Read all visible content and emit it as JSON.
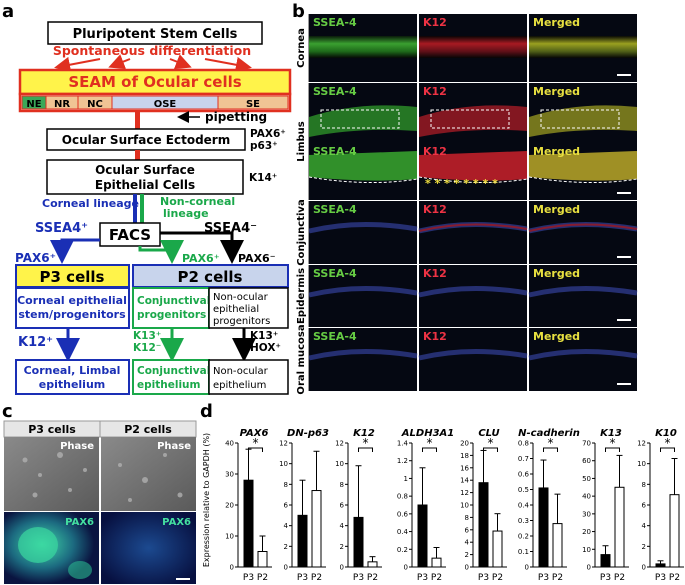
{
  "panel_a": {
    "label": "a",
    "top_box": "Pluripotent Stem Cells",
    "spont_diff": "Spontaneous differentiation",
    "seam_box": "SEAM of Ocular cells",
    "seam_zones": [
      "NE",
      "NR",
      "NC",
      "OSE",
      "SE"
    ],
    "pipetting": "pipetting",
    "ose_box": "Ocular Surface Ectoderm",
    "ose_markers": [
      "PAX6⁺",
      "p63⁺"
    ],
    "osep_box_line1": "Ocular Surface",
    "osep_box_line2": "Epithelial Cells",
    "osep_marker": "K14⁺",
    "corneal_lineage": "Corneal lineage",
    "noncorneal_line1": "Non-corneal",
    "noncorneal_line2": "lineage",
    "ssea4_pos": "SSEA4⁺",
    "ssea4_neg": "SSEA4⁻",
    "facs": "FACS",
    "pax6_pos_blue": "PAX6⁺",
    "pax6_pos_green": "PAX6⁺",
    "pax6_neg": "PAX6⁻",
    "p3_title": "P3 cells",
    "p2_title": "P2 cells",
    "p3_sub_line1": "Corneal epithelial",
    "p3_sub_line2": "stem/progenitors",
    "conj_prog_line1": "Conjunctival",
    "conj_prog_line2": "progenitors",
    "nonocular_prog_line1": "Non-ocular",
    "nonocular_prog_line2": "epithelial",
    "nonocular_prog_line3": "progenitors",
    "k12_pos": "K12⁺",
    "k13_k12_line1": "K13⁺",
    "k13_k12_line2": "K12⁻",
    "k13_hox_line1": "K13⁺",
    "k13_hox_line2": "HOX⁺",
    "corneal_limbal_line1": "Corneal, Limbal",
    "corneal_limbal_line2": "epithelium",
    "conj_epi_line1": "Conjunctival",
    "conj_epi_line2": "epithelium",
    "nonocular_epi_line1": "Non-ocular",
    "nonocular_epi_line2": "epithelium",
    "colors": {
      "red": "#e03020",
      "blue": "#1a2fb5",
      "green": "#1aa84a",
      "yellow": "#fff34a",
      "ose_fill": "#c8d4ec",
      "zone_fill": "#f0c494",
      "ne_fill": "#3aa858"
    }
  },
  "panel_b": {
    "label": "b",
    "col_labels": [
      "SSEA-4",
      "K12",
      "Merged"
    ],
    "col_label_colors": [
      "#66cc44",
      "#ee3344",
      "#e8e040"
    ],
    "row_labels": [
      "Cornea",
      "Limbus",
      "Conjunctiva",
      "Epidermis",
      "Oral mucosa"
    ],
    "asterisks": "* * * * * * * *"
  },
  "panel_c": {
    "label": "c",
    "col_labels": [
      "P3 cells",
      "P2 cells"
    ],
    "phase_label": "Phase",
    "pax6_label": "PAX6"
  },
  "panel_d": {
    "label": "d",
    "ylabel": "Expression relative to GAPDH (%)",
    "xcats": [
      "P3",
      "P2"
    ],
    "sig_mark": "*"
  },
  "chart_data": [
    {
      "type": "bar",
      "title": "PAX6",
      "categories": [
        "P3",
        "P2"
      ],
      "values": [
        28,
        5
      ],
      "errors": [
        10,
        5
      ],
      "ylim": [
        0,
        40
      ],
      "yticks": [
        0,
        10,
        20,
        30,
        40
      ],
      "significant": true
    },
    {
      "type": "bar",
      "title": "DN-p63",
      "categories": [
        "P3",
        "P2"
      ],
      "values": [
        5,
        7.4
      ],
      "errors": [
        3.4,
        3.8
      ],
      "ylim": [
        0,
        12
      ],
      "yticks": [
        0,
        2,
        4,
        6,
        8,
        10,
        12
      ],
      "significant": false
    },
    {
      "type": "bar",
      "title": "K12",
      "categories": [
        "P3",
        "P2"
      ],
      "values": [
        4.8,
        0.5
      ],
      "errors": [
        5,
        0.5
      ],
      "ylim": [
        0,
        12
      ],
      "yticks": [
        0,
        2,
        4,
        6,
        8,
        10,
        12
      ],
      "significant": true
    },
    {
      "type": "bar",
      "title": "ALDH3A1",
      "categories": [
        "P3",
        "P2"
      ],
      "values": [
        0.7,
        0.1
      ],
      "errors": [
        0.42,
        0.12
      ],
      "ylim": [
        0,
        1.4
      ],
      "yticks": [
        0,
        0.2,
        0.4,
        0.6,
        0.8,
        1,
        1.2,
        1.4
      ],
      "significant": true
    },
    {
      "type": "bar",
      "title": "CLU",
      "categories": [
        "P3",
        "P2"
      ],
      "values": [
        13.6,
        5.8
      ],
      "errors": [
        5.2,
        2.8
      ],
      "ylim": [
        0,
        20
      ],
      "yticks": [
        0,
        2,
        4,
        6,
        8,
        10,
        12,
        14,
        16,
        18,
        20
      ],
      "significant": true
    },
    {
      "type": "bar",
      "title": "N-cadherin",
      "categories": [
        "P3",
        "P2"
      ],
      "values": [
        0.51,
        0.28
      ],
      "errors": [
        0.18,
        0.19
      ],
      "ylim": [
        0,
        0.8
      ],
      "yticks": [
        0,
        0.1,
        0.2,
        0.3,
        0.4,
        0.5,
        0.6,
        0.7,
        0.8
      ],
      "significant": true
    },
    {
      "type": "bar",
      "title": "K13",
      "categories": [
        "P3",
        "P2"
      ],
      "values": [
        7,
        45
      ],
      "errors": [
        5,
        18
      ],
      "ylim": [
        0,
        70
      ],
      "yticks": [
        0,
        10,
        20,
        30,
        40,
        50,
        60,
        70
      ],
      "significant": true
    },
    {
      "type": "bar",
      "title": "K10",
      "categories": [
        "P3",
        "P2"
      ],
      "values": [
        0.3,
        7
      ],
      "errors": [
        0.3,
        3.5
      ],
      "ylim": [
        0,
        12
      ],
      "yticks": [
        0,
        2,
        4,
        6,
        8,
        10,
        12
      ],
      "significant": true
    }
  ]
}
